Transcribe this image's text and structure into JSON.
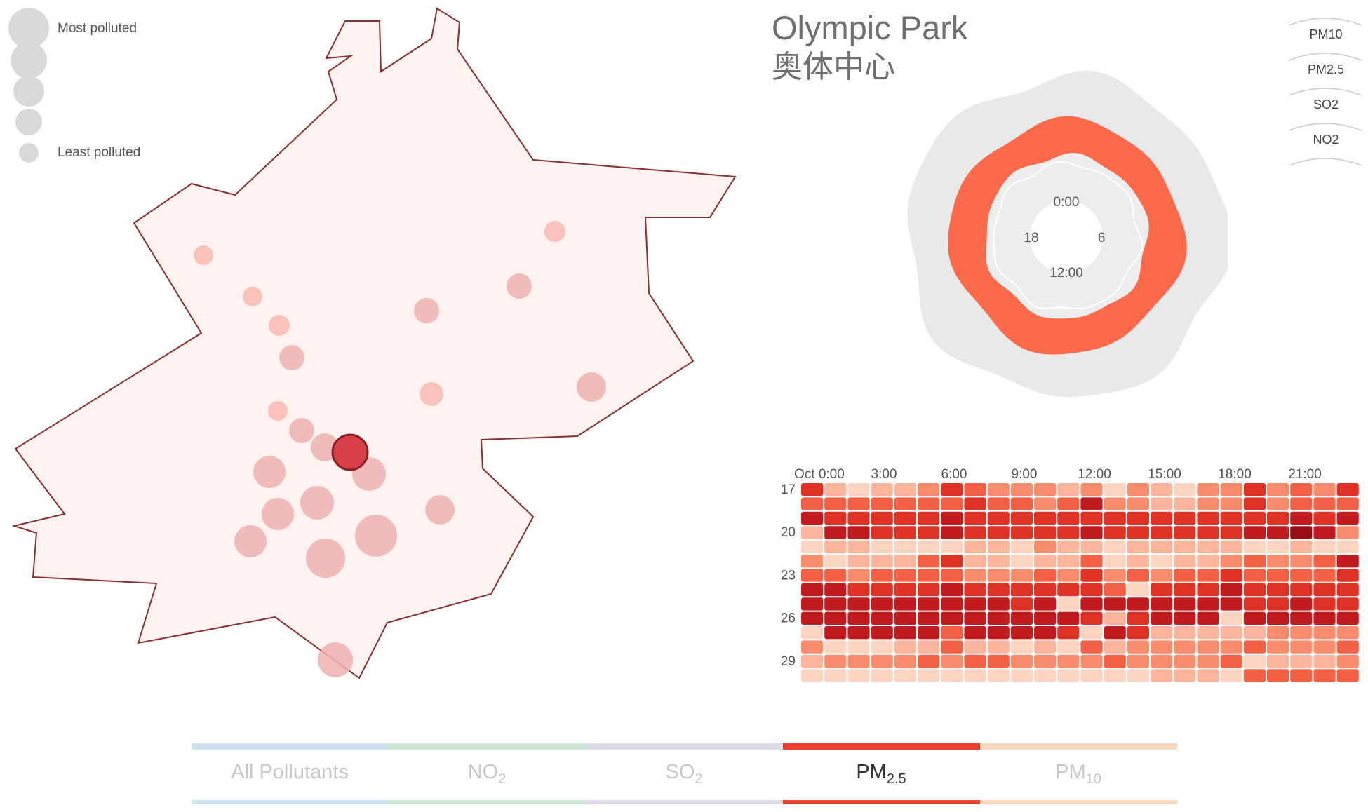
{
  "legend": {
    "most_label": "Most polluted",
    "least_label": "Least polluted"
  },
  "station": {
    "name_en": "Olympic Park",
    "name_cn": "奥体中心"
  },
  "pollutant_buttons": [
    "PM10",
    "PM2.5",
    "SO2",
    "NO2"
  ],
  "radial": {
    "labels": {
      "top": "0:00",
      "right": "6",
      "bottom": "12:00",
      "left": "18"
    },
    "colors": {
      "outer": "#e9e9e9",
      "band": "#fb6b4b",
      "inner": "#ededed"
    }
  },
  "tabs": [
    {
      "main": "All Pollutants",
      "sub": "",
      "color": "#cfe2ef",
      "active": false
    },
    {
      "main": "NO",
      "sub": "2",
      "color": "#cfe7d5",
      "active": false
    },
    {
      "main": "SO",
      "sub": "2",
      "color": "#dedbe9",
      "active": false
    },
    {
      "main": "PM",
      "sub": "2.5",
      "color": "#e8402e",
      "active": true
    },
    {
      "main": "PM",
      "sub": "10",
      "color": "#f8d9c0",
      "active": false
    }
  ],
  "colors": {
    "map_fill": "#fef3f1",
    "map_stroke": "#8b2e2e",
    "station_dot": "#e9a7a7",
    "selected_station": "#d94148",
    "legend_circle": "#d9d9d9"
  },
  "chart_data": {
    "type": "heatmap",
    "title": "",
    "x_tick_labels": [
      "Oct 0:00",
      "3:00",
      "6:00",
      "9:00",
      "12:00",
      "15:00",
      "18:00",
      "21:00"
    ],
    "y_tick_labels": [
      "17",
      "20",
      "23",
      "26",
      "29"
    ],
    "hours": [
      0,
      1,
      2,
      3,
      4,
      5,
      6,
      7,
      8,
      9,
      10,
      11,
      12,
      13,
      14,
      15,
      16,
      17,
      18,
      19,
      20,
      21,
      22,
      23
    ],
    "days": [
      17,
      18,
      19,
      20,
      21,
      22,
      23,
      24,
      25,
      26,
      27,
      28,
      29,
      30
    ],
    "levels": [
      [
        5,
        2,
        1,
        2,
        2,
        3,
        5,
        4,
        3,
        3,
        3,
        2,
        3,
        1,
        3,
        2,
        1,
        3,
        3,
        5,
        3,
        4,
        3,
        5
      ],
      [
        4,
        4,
        4,
        4,
        4,
        4,
        4,
        5,
        4,
        4,
        3,
        4,
        6,
        3,
        3,
        2,
        2,
        3,
        3,
        5,
        3,
        4,
        4,
        4
      ],
      [
        6,
        5,
        5,
        5,
        5,
        5,
        6,
        5,
        5,
        5,
        5,
        5,
        5,
        5,
        5,
        5,
        5,
        5,
        5,
        5,
        5,
        6,
        5,
        6
      ],
      [
        2,
        6,
        6,
        5,
        5,
        5,
        6,
        5,
        5,
        5,
        5,
        5,
        6,
        5,
        5,
        5,
        5,
        5,
        5,
        6,
        6,
        7,
        6,
        3
      ],
      [
        1,
        2,
        2,
        1,
        1,
        1,
        1,
        2,
        2,
        1,
        3,
        2,
        2,
        1,
        2,
        2,
        2,
        2,
        2,
        1,
        1,
        2,
        1,
        1
      ],
      [
        3,
        1,
        2,
        2,
        2,
        4,
        5,
        2,
        2,
        1,
        2,
        2,
        4,
        1,
        2,
        1,
        2,
        2,
        3,
        4,
        3,
        3,
        4,
        6
      ],
      [
        4,
        4,
        3,
        4,
        4,
        4,
        4,
        3,
        3,
        3,
        4,
        3,
        5,
        3,
        4,
        3,
        4,
        4,
        5,
        4,
        4,
        4,
        4,
        5
      ],
      [
        6,
        6,
        5,
        5,
        5,
        5,
        6,
        5,
        5,
        5,
        5,
        5,
        5,
        4,
        1,
        5,
        5,
        5,
        6,
        5,
        5,
        5,
        5,
        5
      ],
      [
        6,
        6,
        6,
        6,
        6,
        6,
        6,
        6,
        6,
        5,
        6,
        1,
        6,
        6,
        6,
        6,
        6,
        6,
        6,
        5,
        5,
        6,
        5,
        5
      ],
      [
        6,
        6,
        6,
        6,
        6,
        6,
        6,
        6,
        6,
        6,
        6,
        6,
        5,
        2,
        5,
        6,
        6,
        6,
        1,
        6,
        6,
        6,
        6,
        6
      ],
      [
        1,
        6,
        6,
        6,
        6,
        6,
        4,
        6,
        6,
        6,
        6,
        5,
        1,
        6,
        5,
        2,
        2,
        2,
        2,
        2,
        3,
        3,
        3,
        3
      ],
      [
        3,
        1,
        1,
        1,
        2,
        2,
        4,
        2,
        2,
        1,
        2,
        1,
        4,
        2,
        3,
        3,
        3,
        3,
        3,
        4,
        3,
        3,
        3,
        4
      ],
      [
        2,
        3,
        3,
        3,
        3,
        4,
        3,
        4,
        4,
        3,
        3,
        3,
        3,
        4,
        3,
        3,
        3,
        3,
        4,
        1,
        2,
        2,
        2,
        3
      ],
      [
        1,
        1,
        1,
        1,
        1,
        1,
        1,
        1,
        1,
        1,
        1,
        1,
        1,
        1,
        1,
        2,
        2,
        2,
        1,
        4,
        4,
        4,
        4,
        4
      ]
    ],
    "level_colors": [
      "#fee6dc",
      "#fdd3c2",
      "#fbb59d",
      "#f88d6d",
      "#f26146",
      "#de3227",
      "#c11a1f",
      "#9a0e15"
    ]
  }
}
